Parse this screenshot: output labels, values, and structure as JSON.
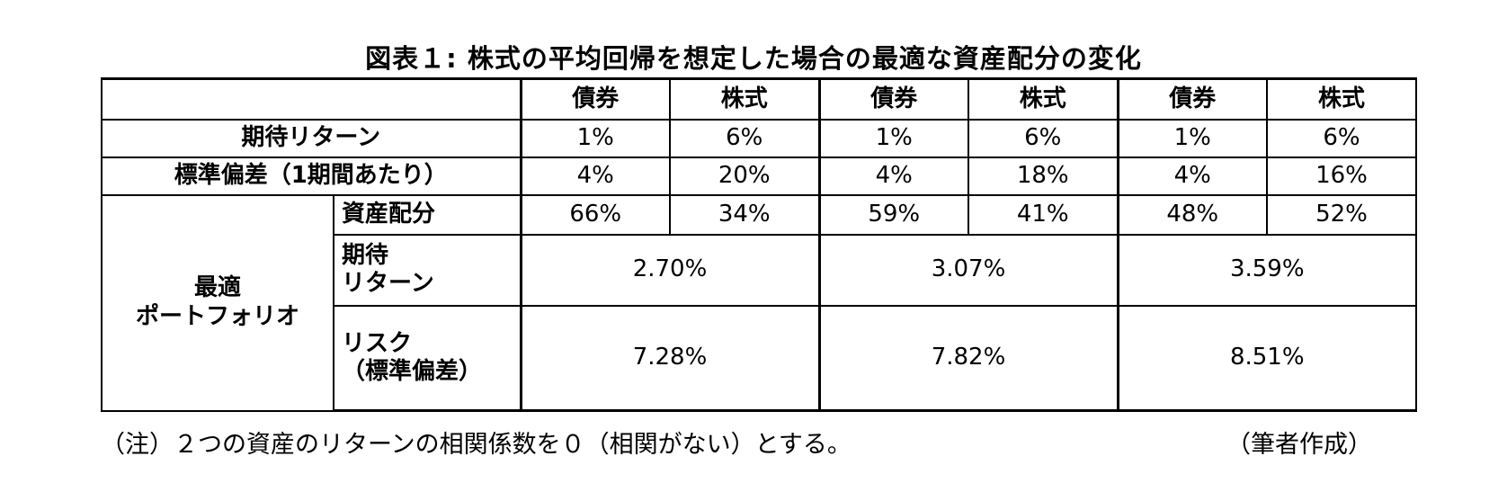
{
  "title": "図表１: 株式の平均回帰を想定した場合の最適な資産配分の変化",
  "header": {
    "bond": "債券",
    "stock": "株式"
  },
  "rows": {
    "expected_return_label": "期待リターン",
    "std_label": "標準偏差（1期間あたり）",
    "optimal_label_line1": "最適",
    "optimal_label_line2": "ポートフォリオ",
    "allocation_label": "資産配分",
    "portfolio_return_label_line1": "期待",
    "portfolio_return_label_line2": "リターン",
    "risk_label_line1": "リスク",
    "risk_label_line2": "（標準偏差）"
  },
  "scenarios": [
    {
      "bond_return": "1%",
      "stock_return": "6%",
      "bond_std": "4%",
      "stock_std": "20%",
      "bond_alloc": "66%",
      "stock_alloc": "34%",
      "portfolio_return": "2.70%",
      "portfolio_risk": "7.28%"
    },
    {
      "bond_return": "1%",
      "stock_return": "6%",
      "bond_std": "4%",
      "stock_std": "18%",
      "bond_alloc": "59%",
      "stock_alloc": "41%",
      "portfolio_return": "3.07%",
      "portfolio_risk": "7.82%"
    },
    {
      "bond_return": "1%",
      "stock_return": "6%",
      "bond_std": "4%",
      "stock_std": "16%",
      "bond_alloc": "48%",
      "stock_alloc": "52%",
      "portfolio_return": "3.59%",
      "portfolio_risk": "8.51%"
    }
  ],
  "footnote": "（注）２つの資産のリターンの相関係数を０（相関がない）とする。",
  "author": "（筆者作成）"
}
